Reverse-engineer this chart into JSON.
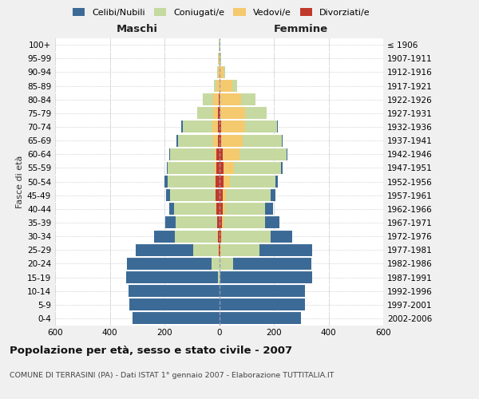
{
  "age_groups": [
    "0-4",
    "5-9",
    "10-14",
    "15-19",
    "20-24",
    "25-29",
    "30-34",
    "35-39",
    "40-44",
    "45-49",
    "50-54",
    "55-59",
    "60-64",
    "65-69",
    "70-74",
    "75-79",
    "80-84",
    "85-89",
    "90-94",
    "95-99",
    "100+"
  ],
  "birth_years": [
    "2002-2006",
    "1997-2001",
    "1992-1996",
    "1987-1991",
    "1982-1986",
    "1977-1981",
    "1972-1976",
    "1967-1971",
    "1962-1966",
    "1957-1961",
    "1952-1956",
    "1947-1951",
    "1942-1946",
    "1937-1941",
    "1932-1936",
    "1927-1931",
    "1922-1926",
    "1917-1921",
    "1912-1916",
    "1907-1911",
    "≤ 1906"
  ],
  "male_celibi": [
    318,
    328,
    330,
    335,
    308,
    210,
    78,
    38,
    18,
    14,
    10,
    5,
    4,
    4,
    4,
    0,
    0,
    0,
    0,
    0,
    0
  ],
  "male_coniugati": [
    0,
    0,
    0,
    5,
    28,
    90,
    155,
    150,
    152,
    165,
    172,
    172,
    162,
    128,
    108,
    60,
    38,
    8,
    5,
    2,
    2
  ],
  "male_vedovi": [
    0,
    0,
    0,
    0,
    0,
    2,
    2,
    2,
    2,
    2,
    4,
    4,
    8,
    18,
    22,
    18,
    20,
    10,
    3,
    1,
    0
  ],
  "male_divorziati": [
    0,
    0,
    0,
    0,
    0,
    2,
    4,
    6,
    10,
    12,
    13,
    11,
    9,
    5,
    4,
    3,
    2,
    0,
    0,
    0,
    0
  ],
  "female_nubili": [
    300,
    315,
    315,
    335,
    288,
    195,
    78,
    52,
    28,
    18,
    10,
    5,
    4,
    4,
    4,
    0,
    0,
    0,
    0,
    0,
    0
  ],
  "female_coniugate": [
    0,
    0,
    0,
    5,
    48,
    140,
    178,
    152,
    148,
    162,
    168,
    172,
    172,
    142,
    118,
    78,
    52,
    18,
    8,
    3,
    2
  ],
  "female_vedove": [
    0,
    0,
    0,
    0,
    1,
    3,
    4,
    6,
    9,
    12,
    22,
    38,
    62,
    78,
    88,
    92,
    78,
    48,
    15,
    5,
    1
  ],
  "female_divorziate": [
    0,
    0,
    0,
    0,
    1,
    3,
    6,
    9,
    12,
    14,
    16,
    16,
    13,
    8,
    6,
    4,
    2,
    0,
    0,
    0,
    0
  ],
  "colors": {
    "celibi": "#3c6a96",
    "coniugati": "#c5d9a0",
    "vedovi": "#f5c96e",
    "divorziati": "#c0392b"
  },
  "xlim": 600,
  "title": "Popolazione per età, sesso e stato civile - 2007",
  "subtitle": "COMUNE DI TERRASINI (PA) - Dati ISTAT 1° gennaio 2007 - Elaborazione TUTTITALIA.IT",
  "ylabel_left": "Fasce di età",
  "xlabel_left": "Maschi",
  "xlabel_right": "Femmine",
  "bg_color": "#f0f0f0",
  "plot_bg": "#ffffff",
  "grid_color": "#cccccc"
}
